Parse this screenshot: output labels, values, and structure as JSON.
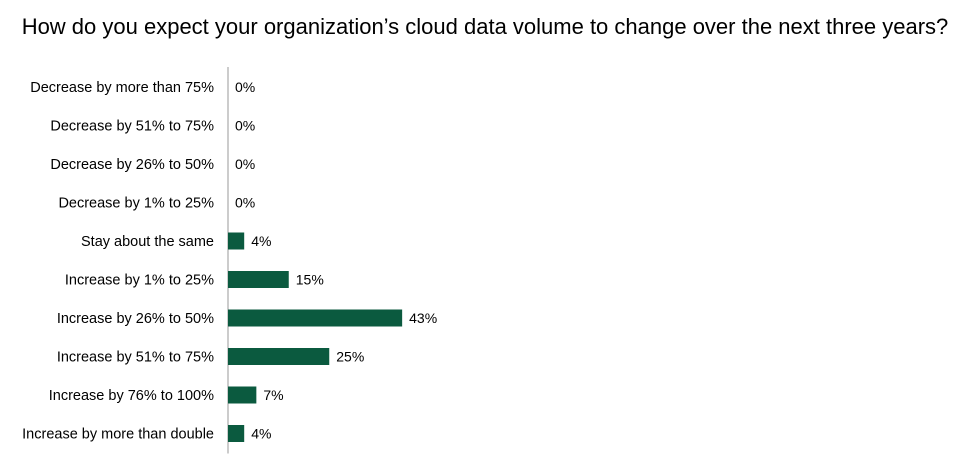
{
  "chart_data": {
    "type": "bar",
    "orientation": "horizontal",
    "title": "How do you expect your organization’s cloud data volume to change over the next three years?",
    "categories": [
      "Decrease by more than 75%",
      "Decrease by 51% to 75%",
      "Decrease by 26% to 50%",
      "Decrease by 1% to 25%",
      "Stay about the same",
      "Increase by 1% to 25%",
      "Increase by 26% to 50%",
      "Increase by 51% to 75%",
      "Increase by 76% to 100%",
      "Increase by more than double"
    ],
    "values": [
      0,
      0,
      0,
      0,
      4,
      15,
      43,
      25,
      7,
      4
    ],
    "value_labels": [
      "0%",
      "0%",
      "0%",
      "0%",
      "4%",
      "15%",
      "43%",
      "25%",
      "7%",
      "4%"
    ],
    "unit": "%",
    "bar_color": "#0b5a3f",
    "grid": false,
    "legend": "none"
  }
}
